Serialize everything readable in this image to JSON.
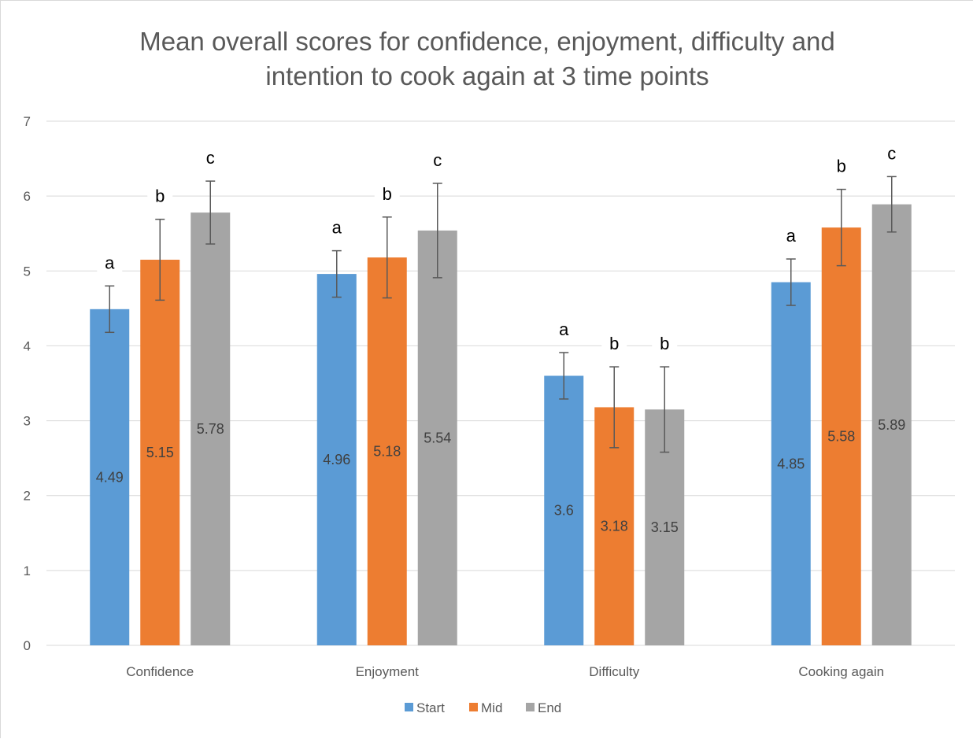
{
  "colors": {
    "start": "#5b9bd5",
    "mid": "#ed7d31",
    "end": "#a5a5a5",
    "grid": "#d9d9d9",
    "axis_text": "#595959",
    "error_bar": "#595959",
    "sig_letter": "#000000"
  },
  "chart_data": {
    "type": "bar",
    "title_lines": [
      "Mean overall scores for confidence, enjoyment, difficulty and",
      "intention to cook again at 3 time points"
    ],
    "xlabel": "",
    "ylabel": "",
    "ylim": [
      0,
      7
    ],
    "yticks": [
      0,
      1,
      2,
      3,
      4,
      5,
      6,
      7
    ],
    "grid": true,
    "legend_position": "bottom",
    "categories": [
      "Confidence",
      "Enjoyment",
      "Difficulty",
      "Cooking again"
    ],
    "series": [
      {
        "name": "Start",
        "color_key": "start",
        "values": [
          4.49,
          4.96,
          3.6,
          4.85
        ],
        "value_labels": [
          "4.49",
          "4.96",
          "3.6",
          "4.85"
        ],
        "errors": [
          0.31,
          0.31,
          0.31,
          0.31
        ],
        "sig_letters": [
          "a",
          "a",
          "a",
          "a"
        ]
      },
      {
        "name": "Mid",
        "color_key": "mid",
        "values": [
          5.15,
          5.18,
          3.18,
          5.58
        ],
        "value_labels": [
          "5.15",
          "5.18",
          "3.18",
          "5.58"
        ],
        "errors": [
          0.54,
          0.54,
          0.54,
          0.51
        ],
        "sig_letters": [
          "b",
          "b",
          "b",
          "b"
        ]
      },
      {
        "name": "End",
        "color_key": "end",
        "values": [
          5.78,
          5.54,
          3.15,
          5.89
        ],
        "value_labels": [
          "5.78",
          "5.54",
          "3.15",
          "5.89"
        ],
        "errors": [
          0.42,
          0.63,
          0.57,
          0.37
        ],
        "sig_letters": [
          "c",
          "c",
          "b",
          "c"
        ]
      }
    ]
  }
}
